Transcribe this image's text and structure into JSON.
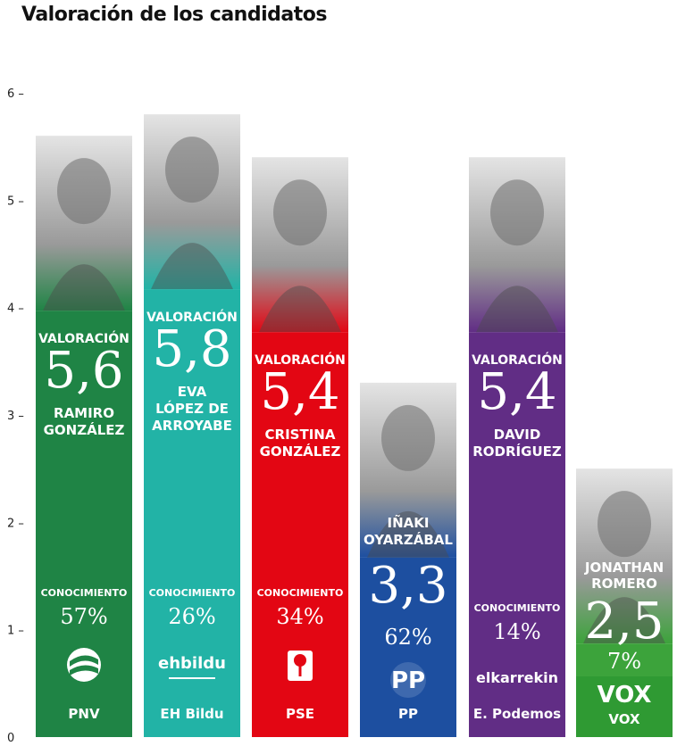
{
  "title": "Valoración de los candidatos",
  "colors": {
    "PNV": "#1f8445",
    "EH Bildu": "#22b3a6",
    "PSE": "#e30613",
    "PP": "#1d4fa0",
    "E. Podemos": "#612d85",
    "VOX": "#3ca33b"
  },
  "chart_data": {
    "type": "bar",
    "title": "Valoración de los candidatos",
    "xlabel": "",
    "ylabel": "",
    "ylim": [
      0,
      6
    ],
    "yticks": [
      "6",
      "5",
      "4",
      "3",
      "2",
      "1",
      "0"
    ],
    "valuation_label": "VALORACIÓN",
    "knowledge_label": "CONOCIMIENTO",
    "categories": [
      "PNV",
      "EH Bildu",
      "PSE",
      "PP",
      "E. Podemos",
      "VOX"
    ],
    "candidates": [
      "RAMIRO GONZÁLEZ",
      "EVA LÓPEZ DE ARROYABE",
      "CRISTINA GONZÁLEZ",
      "IÑAKI OYARZÁBAL",
      "DAVID RODRÍGUEZ",
      "JONATHAN ROMERO"
    ],
    "candidate_lines": [
      [
        "RAMIRO",
        "GONZÁLEZ"
      ],
      [
        "EVA",
        "LÓPEZ DE",
        "ARROYABE"
      ],
      [
        "CRISTINA",
        "GONZÁLEZ"
      ],
      [
        "IÑAKI",
        "OYARZÁBAL"
      ],
      [
        "DAVID",
        "RODRÍGUEZ"
      ],
      [
        "JONATHAN",
        "ROMERO"
      ]
    ],
    "value_labels": [
      "5,6",
      "5,8",
      "5,4",
      "3,3",
      "5,4",
      "2,5"
    ],
    "values": [
      5.6,
      5.8,
      5.4,
      3.3,
      5.4,
      2.5
    ],
    "knowledge_labels": [
      "57%",
      "26%",
      "34%",
      "62%",
      "14%",
      "7%"
    ],
    "knowledge": [
      57,
      26,
      34,
      62,
      14,
      7
    ],
    "party_logos": [
      "PNV logo",
      "ehbildu",
      "PSE logo",
      "PP",
      "elkarrekin Podemos",
      "VOX"
    ],
    "logo_texts": [
      "",
      "ehbildu",
      "",
      "PP",
      "elkarrekin",
      "VOX"
    ],
    "grid": false,
    "legend": "none"
  }
}
